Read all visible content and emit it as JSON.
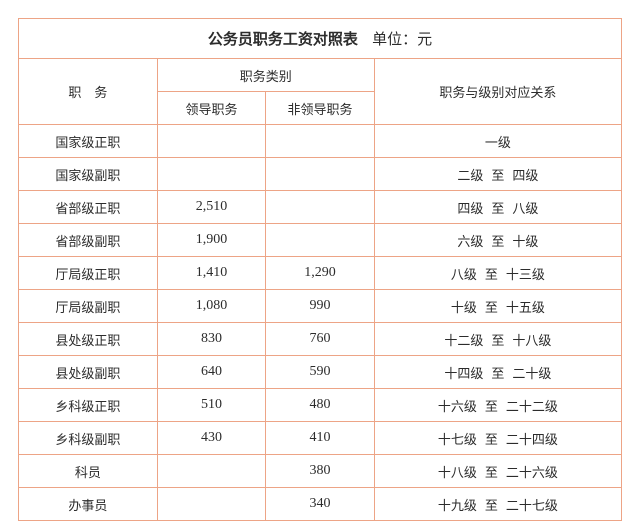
{
  "title": "公务员职务工资对照表",
  "unit": "单位：元",
  "headers": {
    "position": "职　务",
    "category": "职务类别",
    "leader": "领导职务",
    "nonleader": "非领导职务",
    "relation": "职务与级别对应关系"
  },
  "sep": "至",
  "rows": [
    {
      "pos": "国家级正职",
      "lead": "",
      "nonlead": "",
      "rel": "一级"
    },
    {
      "pos": "国家级副职",
      "lead": "",
      "nonlead": "",
      "rel_a": "二级",
      "rel_b": "四级"
    },
    {
      "pos": "省部级正职",
      "lead": "2,510",
      "nonlead": "",
      "rel_a": "四级",
      "rel_b": "八级"
    },
    {
      "pos": "省部级副职",
      "lead": "1,900",
      "nonlead": "",
      "rel_a": "六级",
      "rel_b": "十级"
    },
    {
      "pos": "厅局级正职",
      "lead": "1,410",
      "nonlead": "1,290",
      "rel_a": "八级",
      "rel_b": "十三级"
    },
    {
      "pos": "厅局级副职",
      "lead": "1,080",
      "nonlead": "990",
      "rel_a": "十级",
      "rel_b": "十五级"
    },
    {
      "pos": "县处级正职",
      "lead": "830",
      "nonlead": "760",
      "rel_a": "十二级",
      "rel_b": "十八级"
    },
    {
      "pos": "县处级副职",
      "lead": "640",
      "nonlead": "590",
      "rel_a": "十四级",
      "rel_b": "二十级"
    },
    {
      "pos": "乡科级正职",
      "lead": "510",
      "nonlead": "480",
      "rel_a": "十六级",
      "rel_b": "二十二级"
    },
    {
      "pos": "乡科级副职",
      "lead": "430",
      "nonlead": "410",
      "rel_a": "十七级",
      "rel_b": "二十四级"
    },
    {
      "pos": "科员",
      "lead": "",
      "nonlead": "380",
      "rel_a": "十八级",
      "rel_b": "二十六级"
    },
    {
      "pos": "办事员",
      "lead": "",
      "nonlead": "340",
      "rel_a": "十九级",
      "rel_b": "二十七级"
    }
  ],
  "colors": {
    "border": "#eda486",
    "text": "#2c2c2c",
    "background": "#ffffff"
  },
  "col_widths": [
    "23%",
    "18%",
    "18%",
    "41%"
  ]
}
